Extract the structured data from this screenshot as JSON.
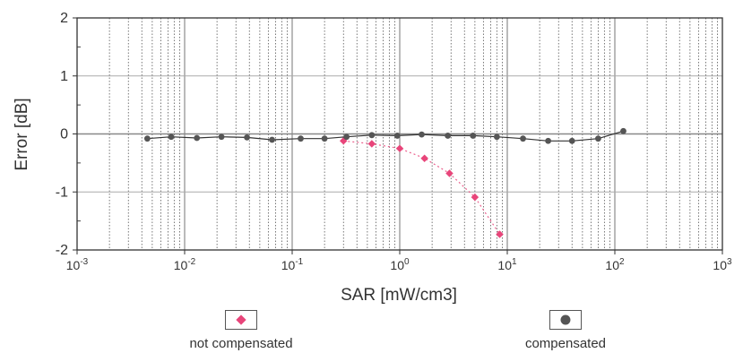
{
  "chart_data": {
    "type": "scatter",
    "xlabel": "SAR [mW/cm3]",
    "ylabel": "Error [dB]",
    "x_scale": "log",
    "xlim": [
      0.001,
      1000
    ],
    "ylim": [
      -2,
      2
    ],
    "x_ticks": [
      {
        "value": 0.001,
        "base": "10",
        "exp": "-3"
      },
      {
        "value": 0.01,
        "base": "10",
        "exp": "-2"
      },
      {
        "value": 0.1,
        "base": "10",
        "exp": "-1"
      },
      {
        "value": 1,
        "base": "10",
        "exp": "0"
      },
      {
        "value": 10,
        "base": "10",
        "exp": "1"
      },
      {
        "value": 100,
        "base": "10",
        "exp": "2"
      },
      {
        "value": 1000,
        "base": "10",
        "exp": "3"
      }
    ],
    "y_ticks": [
      "2",
      "1",
      "0",
      "-1",
      "-2"
    ],
    "grid": true,
    "series": [
      {
        "name": "not compensated",
        "color": "#e8457a",
        "marker": "diamond",
        "x": [
          0.3,
          0.55,
          1.0,
          1.7,
          2.9,
          5.0,
          8.5
        ],
        "y": [
          -0.12,
          -0.17,
          -0.25,
          -0.42,
          -0.68,
          -1.09,
          -1.73
        ]
      },
      {
        "name": "compensated",
        "color": "#555555",
        "marker": "circle",
        "x": [
          0.0045,
          0.0075,
          0.013,
          0.022,
          0.038,
          0.065,
          0.12,
          0.2,
          0.32,
          0.55,
          0.95,
          1.6,
          2.8,
          4.8,
          8.0,
          14,
          24,
          40,
          70,
          120
        ],
        "y": [
          -0.08,
          -0.05,
          -0.07,
          -0.05,
          -0.06,
          -0.1,
          -0.08,
          -0.08,
          -0.05,
          -0.02,
          -0.03,
          -0.01,
          -0.03,
          -0.03,
          -0.05,
          -0.08,
          -0.12,
          -0.12,
          -0.08,
          0.05
        ]
      }
    ]
  }
}
